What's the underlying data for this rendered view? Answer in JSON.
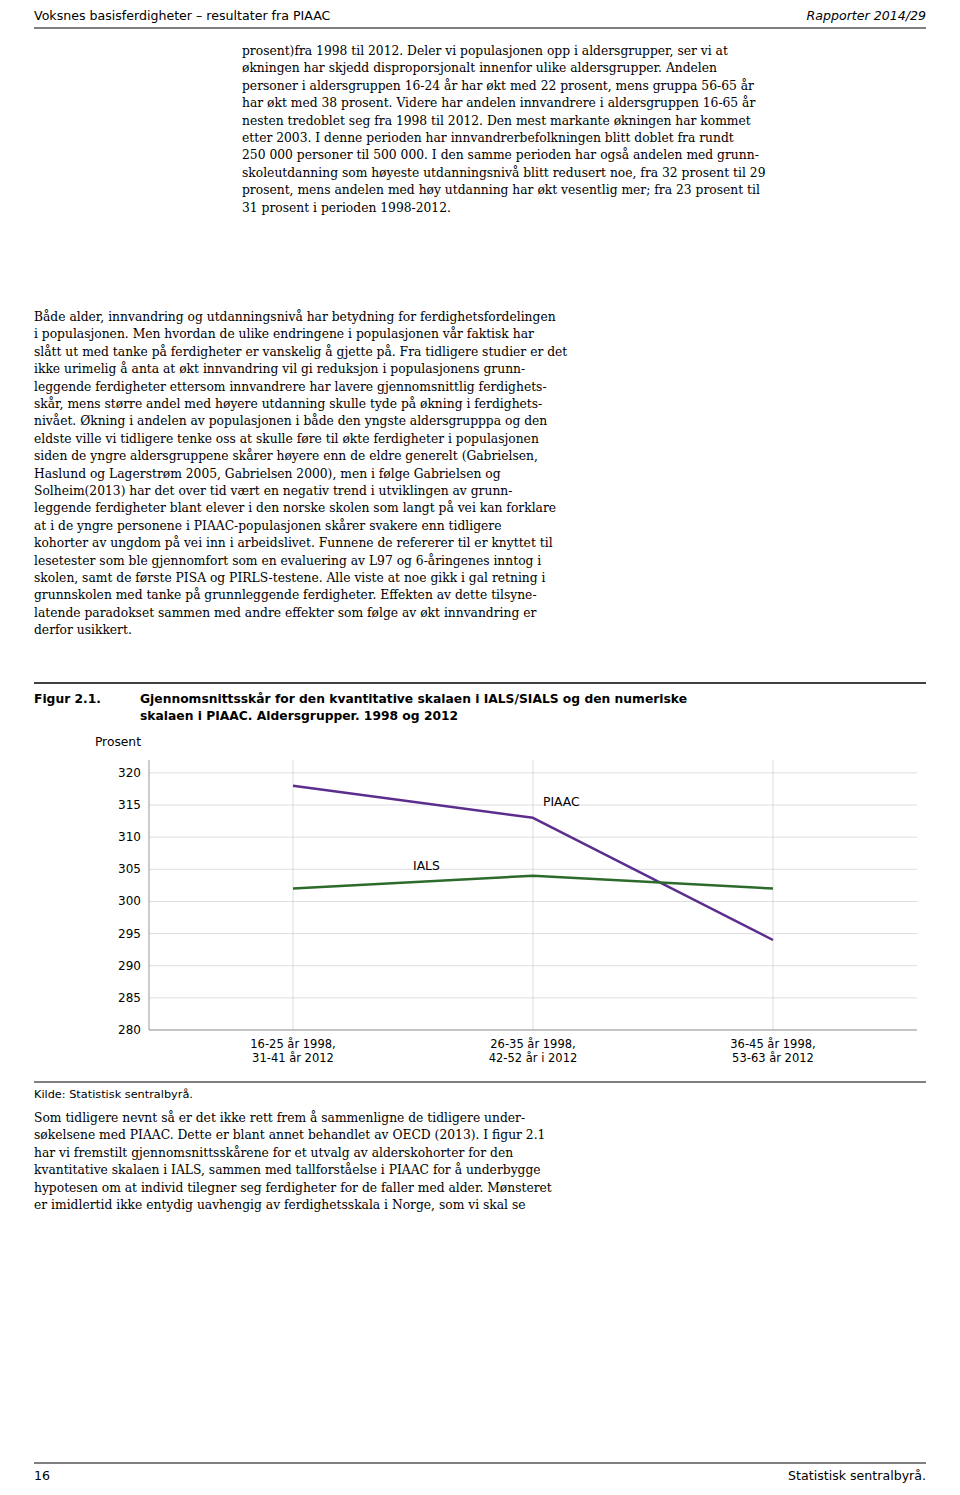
{
  "page": {
    "header_left": "Voksnes basisferdigheter – resultater fra PIAAC",
    "header_right": "Rapporter 2014/29",
    "page_number": "16",
    "footer_right": "Statistisk sentralbyrå.",
    "body_before": [
      [
        "prosent)fra 1998 til 2012. Deler vi populasjonen opp i aldersgrupper, ser vi at",
        "økningen har skjedd disproporsjonalt innenfor ulike aldersgrupper. Andelen",
        "personer i aldersgruppen 16-24 år har økt med 22 prosent, mens gruppa 56-65 år",
        "har økt med 38 prosent. Videre har andelen innvandrere i aldersgruppen 16-65 år",
        "nesten tredoblet seg fra 1998 til 2012. Den mest markante økningen har kommet",
        "etter 2003. I denne perioden har innvandrerbefolkningen blitt doblet fra rundt",
        "250 000 personer til 500 000. I den samme perioden har også andelen med grunn-",
        "skoleutdanning som høyeste utdanningsnivå blitt redusert noe, fra 32 prosent til 29",
        "prosent, mens andelen med høy utdanning har økt vesentlig mer; fra 23 prosent til",
        "31 prosent i perioden 1998-2012."
      ],
      [
        "Både alder, innvandring og utdanningsnivå har betydning for ferdighetsfordelingen",
        "i populasjonen. Men hvordan de ulike endringene i populasjonen vår faktisk har",
        "slått ut med tanke på ferdigheter er vanskelig å gjette på. Fra tidligere studier er det",
        "ikke urimelig å anta at økt innvandring vil gi reduksjon i populasjonens grunn-",
        "leggende ferdigheter ettersom innvandrere har lavere gjennomsnittlig ferdighets-",
        "skår, mens større andel med høyere utdanning skulle tyde på økning i ferdighets-",
        "nivået. Økning i andelen av populasjonen i både den yngste aldersgrupppa og den",
        "eldste ville vi tidligere tenke oss at skulle føre til økte ferdigheter i populasjonen",
        "siden de yngre aldersgruppene skårer høyere enn de eldre generelt (Gabrielsen,",
        "Haslund og Lagerstrøm 2005, Gabrielsen 2000), men i følge Gabrielsen og",
        "Solheim(2013) har det over tid vært en negativ trend i utviklingen av grunn-",
        "leggende ferdigheter blant elever i den norske skolen som langt på vei kan forklare",
        "at i de yngre personene i PIAAC-populasjonen skårer svakere enn tidligere",
        "kohorter av ungdom på vei inn i arbeidslivet. Funnene de refererer til er knyttet til",
        "lesetester som ble gjennomfort som en evaluering av L97 og 6-åringenes inntog i",
        "skolen, samt de første PISA og PIRLS-testene. Alle viste at noe gikk i gal retning i",
        "grunnskolen med tanke på grunnleggende ferdigheter. Effekten av dette tilsyne-",
        "latende paradokset sammen med andre effekter som følge av økt innvandring er",
        "derfor usikkert."
      ]
    ],
    "figure_label": "Figur 2.1.",
    "source": "Kilde: Statistisk sentralbyrå.",
    "body_after": [
      "Som tidligere nevnt så er det ikke rett frem å sammenligne de tidligere under-",
      "søkelsene med PIAAC. Dette er blant annet behandlet av OECD (2013). I figur 2.1",
      "har vi fremstilt gjennomsnittsskårene for et utvalg av alderskohorter for den",
      "kvantitative skalaen i IALS, sammen med tallforståelse i PIAAC for å underbygge",
      "hypotesen om at individ tilegner seg ferdigheter for de faller med alder. Mønsteret",
      "er imidlertid ikke entydig uavhengig av ferdighetsskala i Norge, som vi skal se"
    ]
  },
  "chart_data": {
    "type": "line",
    "title": [
      "Gjennomsnittsskår for den kvantitative skalaen i IALS/SIALS og den numeriske",
      "skalaen i PIAAC. Aldersgrupper. 1998 og 2012"
    ],
    "y_label": "Prosent",
    "categories": [
      "16-25 år 1998,\n31-41 år 2012",
      "26-35 år 1998,\n42-52 år i 2012",
      "36-45 år 1998,\n53-63 år 2012"
    ],
    "series": [
      {
        "name": "PIAAC",
        "color": "#5B2D8E",
        "values": [
          318.0,
          313.0,
          294.0
        ]
      },
      {
        "name": "IALS",
        "color": "#2D6B2D",
        "values": [
          302.0,
          304.0,
          302.0
        ]
      }
    ],
    "ylim": [
      280,
      322
    ],
    "yticks": [
      280,
      285,
      290,
      295,
      300,
      305,
      310,
      315,
      320
    ],
    "grid": true
  }
}
